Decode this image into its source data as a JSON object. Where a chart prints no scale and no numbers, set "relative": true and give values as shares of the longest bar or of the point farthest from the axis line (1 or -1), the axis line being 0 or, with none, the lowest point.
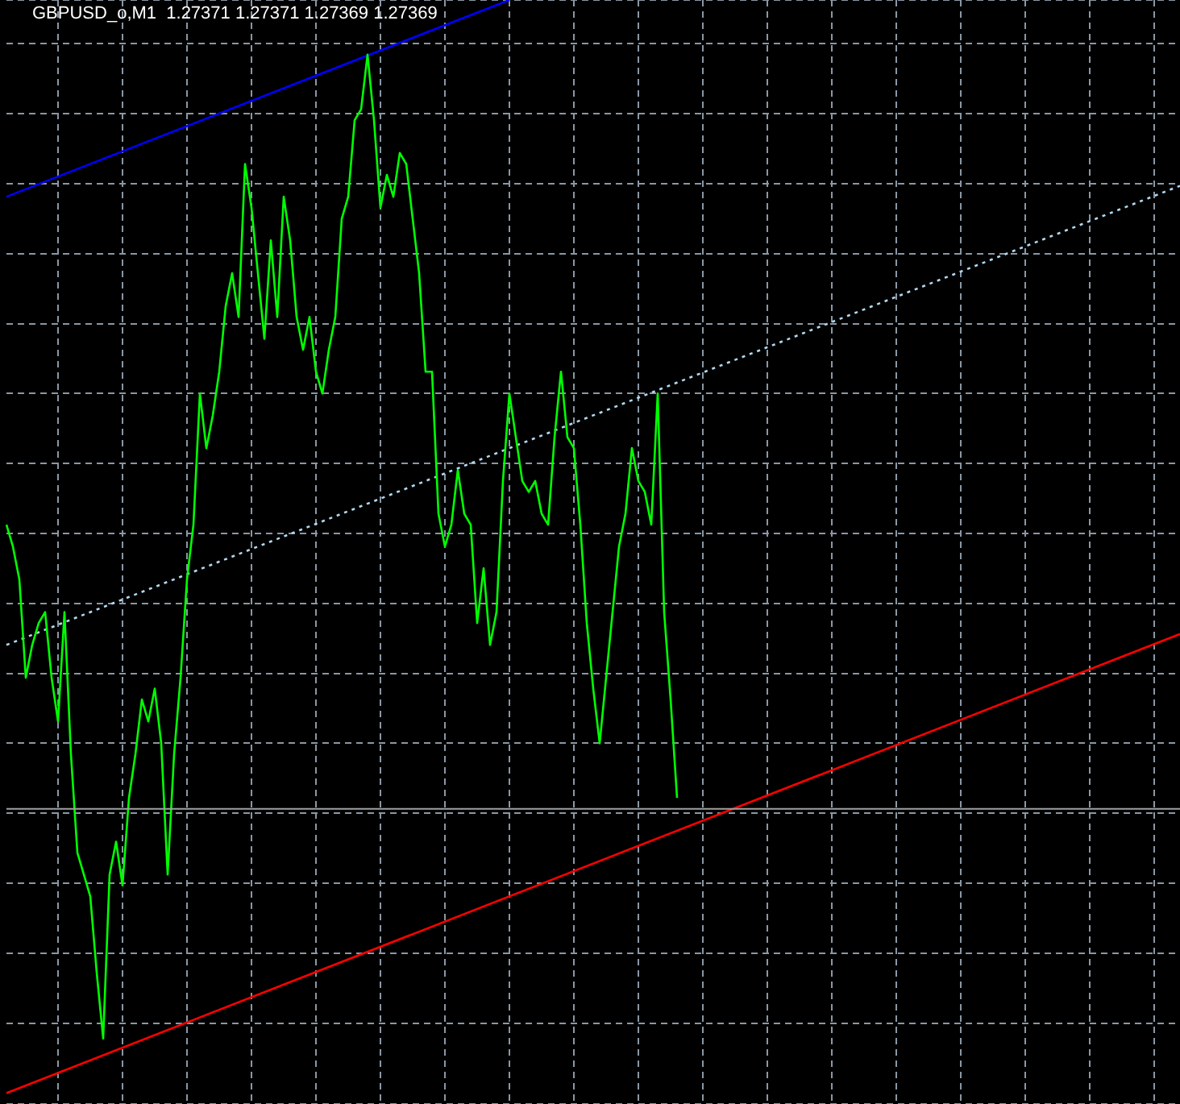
{
  "chart_data": {
    "type": "line",
    "title": "GBPUSD_o,M1  1.27371 1.27371 1.27369 1.27369",
    "relative": true,
    "grid": true,
    "legend": false,
    "categories": [
      null,
      null,
      null,
      null,
      null,
      null,
      null,
      null,
      null,
      null,
      null,
      null,
      null,
      null,
      null,
      null,
      null,
      null,
      null,
      null,
      null,
      null,
      null,
      null,
      null,
      null,
      null,
      null,
      null,
      null,
      null,
      null,
      null,
      null,
      null,
      null,
      null,
      null,
      null,
      null,
      null,
      null,
      null,
      null,
      null,
      null,
      null,
      null,
      null,
      null,
      null,
      null,
      null,
      null,
      null,
      null,
      null,
      null,
      null,
      null,
      null,
      null,
      null,
      null,
      null,
      null,
      null,
      null,
      null,
      null,
      null,
      null,
      null,
      null,
      null,
      null,
      null,
      null,
      null,
      null,
      null,
      null,
      null,
      null,
      null,
      null,
      null,
      null,
      null,
      null,
      null,
      null,
      null,
      null,
      null,
      null,
      null,
      null,
      null,
      null,
      null,
      null,
      null,
      null,
      null,
      null,
      null,
      null,
      null,
      null,
      null,
      null,
      null,
      null,
      null,
      null,
      null,
      null,
      null,
      null,
      null,
      null,
      null,
      null,
      null,
      null,
      null,
      null,
      null,
      null,
      null,
      null,
      null,
      null,
      null,
      null,
      null,
      null,
      null,
      null,
      null,
      null,
      null,
      null,
      null,
      null,
      null,
      null,
      null,
      null,
      null,
      null,
      null,
      null,
      null,
      null,
      null,
      null,
      null,
      null,
      null,
      null,
      null,
      null,
      null,
      null,
      null,
      null,
      null,
      null,
      null,
      null,
      null,
      null,
      null,
      null,
      null,
      null,
      null,
      null,
      null,
      null,
      null
    ],
    "series": [
      {
        "color": "#00ff00",
        "line_style": "solid",
        "values": [
          0.52,
          0.5,
          0.47,
          0.38,
          0.41,
          0.43,
          0.44,
          0.38,
          0.34,
          0.44,
          0.31,
          0.22,
          0.2,
          0.18,
          0.11,
          0.05,
          0.2,
          0.23,
          0.19,
          0.27,
          0.31,
          0.36,
          0.34,
          0.37,
          0.32,
          0.2,
          0.31,
          0.38,
          0.47,
          0.52,
          0.64,
          0.59,
          0.62,
          0.66,
          0.72,
          0.75,
          0.71,
          0.85,
          0.81,
          0.75,
          0.69,
          0.78,
          0.71,
          0.82,
          0.78,
          0.71,
          0.68,
          0.71,
          0.66,
          0.64,
          0.68,
          0.71,
          0.8,
          0.82,
          0.89,
          0.9,
          0.95,
          0.89,
          0.81,
          0.84,
          0.82,
          0.86,
          0.85,
          0.8,
          0.75,
          0.66,
          0.66,
          0.53,
          0.5,
          0.52,
          0.57,
          0.53,
          0.52,
          0.43,
          0.48,
          0.41,
          0.44,
          0.56,
          0.64,
          0.6,
          0.56,
          0.55,
          0.56,
          0.53,
          0.52,
          0.6,
          0.66,
          0.6,
          0.59,
          0.52,
          0.43,
          0.37,
          0.32,
          0.38,
          0.44,
          0.5,
          0.53,
          0.59,
          0.56,
          0.55,
          0.52,
          0.64,
          0.44,
          0.36,
          0.27,
          null,
          null,
          null,
          null,
          null,
          null,
          null,
          null,
          null,
          null,
          null,
          null,
          null,
          null,
          null,
          null,
          null,
          null,
          null,
          null,
          null,
          null,
          null,
          null,
          null,
          null,
          null,
          null,
          null,
          null,
          null,
          null,
          null,
          null,
          null,
          null,
          null,
          null,
          null,
          null,
          null,
          null,
          null,
          null,
          null,
          null,
          null,
          null,
          null,
          null,
          null,
          null,
          null,
          null,
          null,
          null,
          null,
          null,
          null,
          null,
          null,
          null,
          null,
          null,
          null,
          null,
          null,
          null,
          null,
          null,
          null,
          null,
          null,
          null,
          null,
          null,
          null,
          null
        ]
      },
      {
        "color": "#0000ff",
        "line_style": "solid",
        "values": [
          0.82,
          null,
          null,
          null,
          null,
          null,
          null,
          null,
          null,
          null,
          null,
          null,
          null,
          null,
          null,
          null,
          null,
          null,
          null,
          null,
          null,
          null,
          null,
          null,
          null,
          null,
          null,
          null,
          null,
          null,
          null,
          null,
          null,
          null,
          null,
          null,
          null,
          null,
          null,
          null,
          null,
          null,
          null,
          null,
          null,
          null,
          null,
          null,
          null,
          null,
          null,
          null,
          null,
          null,
          null,
          null,
          null,
          null,
          null,
          null,
          null,
          null,
          null,
          null,
          null,
          null,
          null,
          null,
          null,
          null,
          null,
          null,
          null,
          null,
          null,
          null,
          null,
          null,
          1,
          null,
          null,
          null,
          null,
          null,
          null,
          null,
          null,
          null,
          null,
          null,
          null,
          null,
          null,
          null,
          null,
          null,
          null,
          null,
          null,
          null,
          null,
          null,
          null,
          null,
          null,
          null,
          null,
          null,
          null,
          null,
          null,
          null,
          null,
          null,
          null,
          null,
          null,
          null,
          null,
          null,
          null,
          null,
          null,
          null,
          null,
          null,
          null,
          null,
          null,
          null,
          null,
          null,
          null,
          null,
          null,
          null,
          null,
          null,
          null,
          null,
          null,
          null,
          null,
          null,
          null,
          null,
          null,
          null,
          null,
          null,
          null,
          null,
          null,
          null,
          null,
          null,
          null,
          null,
          null,
          null,
          null,
          null,
          null,
          null,
          null,
          null,
          null,
          null,
          null,
          null,
          null,
          null,
          null,
          null,
          null,
          null,
          null,
          null,
          null,
          null,
          null,
          null,
          null
        ]
      },
      {
        "color": "#b0d8f0",
        "line_style": "dotted",
        "values": [
          0.41,
          null,
          null,
          null,
          null,
          null,
          null,
          null,
          null,
          null,
          null,
          null,
          null,
          null,
          null,
          null,
          null,
          null,
          null,
          null,
          null,
          null,
          null,
          null,
          null,
          null,
          null,
          null,
          null,
          null,
          null,
          null,
          null,
          null,
          null,
          null,
          null,
          null,
          null,
          null,
          null,
          null,
          null,
          null,
          null,
          null,
          null,
          null,
          null,
          null,
          null,
          null,
          null,
          null,
          null,
          null,
          null,
          null,
          null,
          null,
          null,
          null,
          null,
          null,
          null,
          null,
          null,
          null,
          null,
          null,
          null,
          null,
          null,
          null,
          null,
          null,
          null,
          null,
          null,
          null,
          null,
          null,
          null,
          null,
          null,
          null,
          null,
          null,
          null,
          null,
          null,
          null,
          null,
          null,
          null,
          null,
          null,
          null,
          null,
          null,
          null,
          null,
          null,
          null,
          null,
          null,
          null,
          null,
          null,
          null,
          null,
          null,
          null,
          null,
          null,
          null,
          null,
          null,
          null,
          null,
          null,
          null,
          null,
          null,
          null,
          null,
          null,
          null,
          null,
          null,
          null,
          null,
          null,
          null,
          null,
          null,
          null,
          null,
          null,
          null,
          null,
          null,
          null,
          null,
          null,
          null,
          null,
          null,
          null,
          null,
          null,
          null,
          null,
          null,
          null,
          null,
          null,
          null,
          null,
          null,
          null,
          null,
          null,
          null,
          null,
          null,
          null,
          null,
          null,
          null,
          null,
          null,
          null,
          null,
          null,
          null,
          null,
          null,
          null,
          null,
          null,
          null,
          0.83
        ]
      },
      {
        "color": "#ff0000",
        "line_style": "solid",
        "values": [
          0,
          null,
          null,
          null,
          null,
          null,
          null,
          null,
          null,
          null,
          null,
          null,
          null,
          null,
          null,
          null,
          null,
          null,
          null,
          null,
          null,
          null,
          null,
          null,
          null,
          null,
          null,
          null,
          null,
          null,
          null,
          null,
          null,
          null,
          null,
          null,
          null,
          null,
          null,
          null,
          null,
          null,
          null,
          null,
          null,
          null,
          null,
          null,
          null,
          null,
          null,
          null,
          null,
          null,
          null,
          null,
          null,
          null,
          null,
          null,
          null,
          null,
          null,
          null,
          null,
          null,
          null,
          null,
          null,
          null,
          null,
          null,
          null,
          null,
          null,
          null,
          null,
          null,
          null,
          null,
          null,
          null,
          null,
          null,
          null,
          null,
          null,
          null,
          null,
          null,
          null,
          null,
          null,
          null,
          null,
          null,
          null,
          null,
          null,
          null,
          null,
          null,
          null,
          null,
          null,
          null,
          null,
          null,
          null,
          null,
          null,
          null,
          null,
          null,
          null,
          null,
          null,
          null,
          null,
          null,
          null,
          null,
          null,
          null,
          null,
          null,
          null,
          null,
          null,
          null,
          null,
          null,
          null,
          null,
          null,
          null,
          null,
          null,
          null,
          null,
          null,
          null,
          null,
          null,
          null,
          null,
          null,
          null,
          null,
          null,
          null,
          null,
          null,
          null,
          null,
          null,
          null,
          null,
          null,
          null,
          null,
          null,
          null,
          null,
          null,
          null,
          null,
          null,
          null,
          null,
          null,
          null,
          null,
          null,
          null,
          null,
          null,
          null,
          null,
          null,
          null,
          null,
          0.42
        ]
      }
    ],
    "ref_lines": [
      {
        "axis": "y",
        "value": 0.26,
        "color": "#a0a0a0",
        "line_style": "solid"
      }
    ]
  }
}
